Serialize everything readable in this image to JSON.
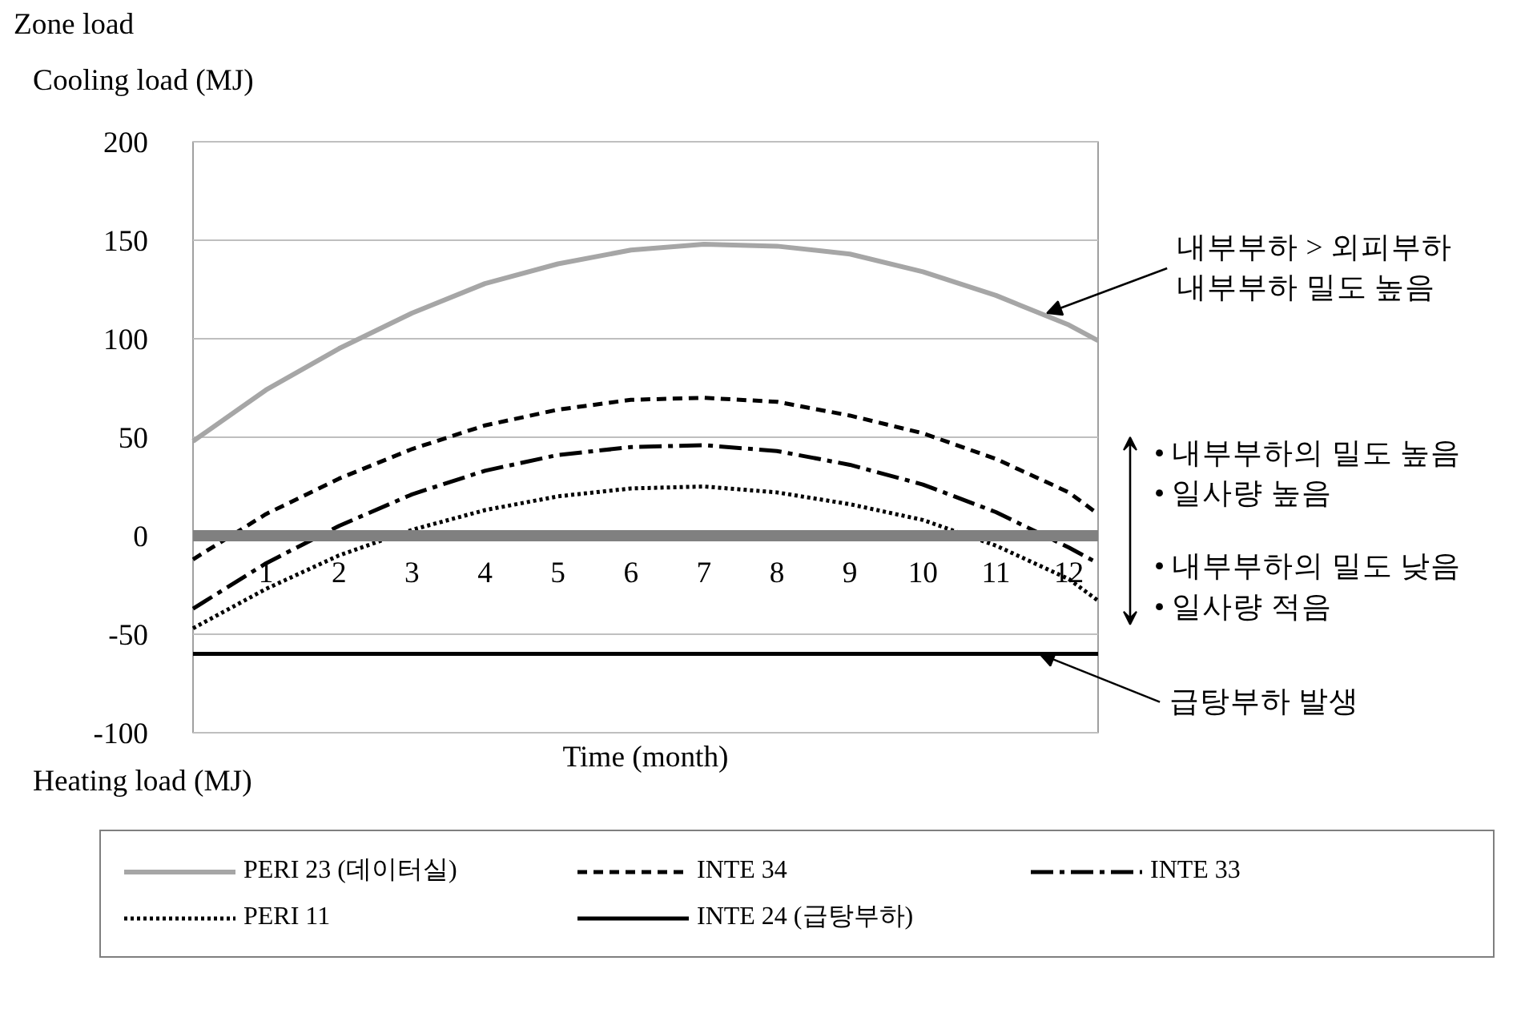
{
  "chart_data": {
    "type": "line",
    "title": "Zone load",
    "ylabel": "Cooling load (MJ)",
    "xlabel": "Time (month)",
    "x": [
      0,
      1,
      2,
      3,
      4,
      5,
      6,
      7,
      8,
      9,
      10,
      11,
      12,
      12.4
    ],
    "xlim": [
      0,
      12.4
    ],
    "xticks": [
      1,
      2,
      3,
      4,
      5,
      6,
      7,
      8,
      9,
      10,
      11,
      12
    ],
    "ylim": [
      -100,
      200
    ],
    "yticks": [
      -100,
      -50,
      0,
      50,
      100,
      150,
      200
    ],
    "grid": "y",
    "legend": "bottom",
    "series": [
      {
        "name": "PERI 23 (데이터실)",
        "color": "#a6a6a6",
        "line_style": "solid",
        "values": [
          48,
          74,
          95,
          113,
          128,
          138,
          145,
          148,
          147,
          143,
          134,
          122,
          107,
          99
        ]
      },
      {
        "name": "INTE 34",
        "color": "#000000",
        "line_style": "dashed",
        "values": [
          -12,
          11,
          29,
          44,
          56,
          64,
          69,
          70,
          68,
          61,
          52,
          39,
          22,
          11
        ]
      },
      {
        "name": "INTE 33",
        "color": "#000000",
        "line_style": "dashdot",
        "values": [
          -37,
          -14,
          5,
          21,
          33,
          41,
          45,
          46,
          43,
          36,
          26,
          12,
          -6,
          -14
        ]
      },
      {
        "name": "PERI 11",
        "color": "#000000",
        "line_style": "dotted",
        "values": [
          -47,
          -27,
          -10,
          3,
          13,
          20,
          24,
          25,
          22,
          16,
          8,
          -5,
          -22,
          -33
        ]
      },
      {
        "name": "INTE 24 (급탕부하)",
        "color": "#000000",
        "line_style": "solid",
        "values": [
          -60,
          -60,
          -60,
          -60,
          -60,
          -60,
          -60,
          -60,
          -60,
          -60,
          -60,
          -60,
          -60,
          -60
        ]
      }
    ],
    "annotations": [
      {
        "text": "내부부하 > 외피부하\n내부부하 밀도 높음",
        "x": 11.7,
        "y": 113
      },
      "• 내부부하의 밀도 높음\n• 일사량 높음",
      "• 내부부하의 밀도 낮음\n• 일사량 적음",
      {
        "text": "급탕부하 발생",
        "x": 11.6,
        "y": -60
      },
      "Heating load (MJ)"
    ]
  }
}
